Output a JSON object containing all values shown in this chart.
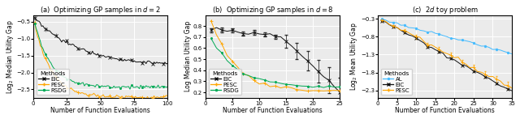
{
  "panel_a": {
    "title": "(a)  Optimizing GP samples in $d = 2$",
    "xlabel": "Number of Function Evaluations",
    "ylabel": "Log$_2$ Median Utility Gap",
    "xlim": [
      0,
      100
    ],
    "ylim": [
      -2.75,
      -0.3
    ],
    "yticks": [
      -2.5,
      -2.0,
      -1.5,
      -1.0,
      -0.5
    ],
    "xticks": [
      0,
      25,
      50,
      75,
      100
    ],
    "methods": [
      "EIC",
      "PESC",
      "RSDG"
    ],
    "colors": [
      "#111111",
      "#FFA500",
      "#00AA55"
    ],
    "marker_every": 8
  },
  "panel_b": {
    "title": "(b)  Optimizing GP samples in $d = 8$",
    "xlabel": "Number of Function Evaluations",
    "ylabel": "Log Median Utility Gap",
    "xlim": [
      0,
      25
    ],
    "ylim": [
      0.15,
      0.9
    ],
    "yticks": [
      0.2,
      0.3,
      0.4,
      0.5,
      0.6,
      0.7,
      0.8
    ],
    "xticks": [
      0,
      5,
      10,
      15,
      20,
      25
    ],
    "methods": [
      "EIC",
      "PESC",
      "RSDG"
    ],
    "colors": [
      "#111111",
      "#FFA500",
      "#00AA55"
    ],
    "marker_every": 2
  },
  "panel_c": {
    "title": "(c)  $2d$ toy problem",
    "xlabel": "Number of Function Evaluations",
    "ylabel": "Log$_2$ Mean Utility Gap",
    "xlim": [
      0,
      35
    ],
    "ylim": [
      -2.5,
      -0.2
    ],
    "yticks": [
      -2.3,
      -1.8,
      -1.3,
      -0.8,
      -0.3
    ],
    "xticks": [
      0,
      5,
      10,
      15,
      20,
      25,
      30,
      35
    ],
    "methods": [
      "AL",
      "EIC",
      "PESC"
    ],
    "colors": [
      "#44BBFF",
      "#111111",
      "#FFA500"
    ],
    "marker_every": 3
  },
  "legend_fontsize": 5.0,
  "tick_fontsize": 5,
  "label_fontsize": 5.5,
  "title_fontsize": 6.0,
  "bg_color": "#EBEBEB"
}
